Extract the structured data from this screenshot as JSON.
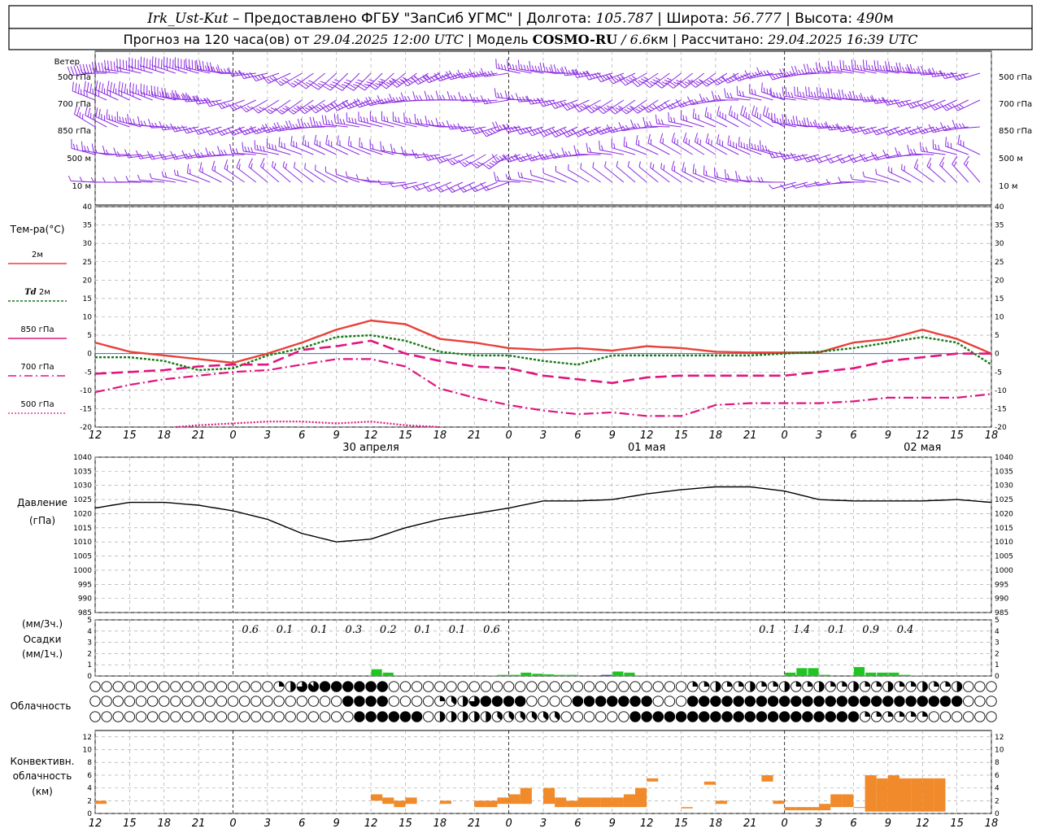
{
  "header": {
    "line1": {
      "station": "Irk_Ust-Kut",
      "provider": " – Предоставлено ФГБУ \"ЗапСиб УГМС\" | Долгота: ",
      "lon": "105.787",
      "lat_label": " | Широта: ",
      "lat": "56.777",
      "alt_label": " | Высота: ",
      "alt": "490",
      "alt_unit": "м"
    },
    "line2": {
      "prefix": "Прогноз на 120 часа(ов) от ",
      "start": "29.04.2025 12:00 UTC",
      "model_label": " | Модель ",
      "model": "COSMO-RU",
      "sep": " / ",
      "res": "6.6",
      "res_unit": "км",
      "calc_label": " | Рассчитано: ",
      "calc": "29.04.2025 16:39 UTC"
    }
  },
  "colors": {
    "wind": "#8b2be2",
    "t2m": "#e8413a",
    "td2m": "#157a15",
    "t850": "#e0157f",
    "t700": "#e0157f",
    "t500": "#e0157f",
    "pressure": "#000000",
    "precip_rain": "#21c521",
    "precip_other": "#2a52be",
    "convective": "#f08a2a",
    "grid": "#9a9a9a"
  },
  "panels": {
    "wind": {
      "title": "Ветер",
      "levels": [
        "500 гПа",
        "700 гПа",
        "850 гПа",
        "500 м",
        "10  м"
      ]
    },
    "temperature": {
      "title": "Тем-ра(°C)",
      "legend": [
        "2м",
        "Td 2м",
        "850 гПа",
        "700 гПа",
        "500 гПа"
      ],
      "legend_td_italic": "Td",
      "legend_td_rest": " 2м",
      "yticks": [
        "40",
        "35",
        "30",
        "25",
        "20",
        "15",
        "10",
        "5",
        "0",
        "-5",
        "-10",
        "-15",
        "-20"
      ]
    },
    "pressure": {
      "title1": "Давление",
      "title2": "(гПа)",
      "yticks": [
        "1040",
        "1035",
        "1030",
        "1025",
        "1020",
        "1015",
        "1010",
        "1005",
        "1000",
        "995",
        "990",
        "985"
      ]
    },
    "precip": {
      "title1": "(мм/3ч.)",
      "title2": "Осадки",
      "title3": "(мм/1ч.)",
      "yticks": [
        "5",
        "4",
        "3",
        "2",
        "1",
        "0"
      ],
      "labels": [
        {
          "hour": 13.5,
          "text": "0.6"
        },
        {
          "hour": 16.5,
          "text": "0.1"
        },
        {
          "hour": 19.5,
          "text": "0.1"
        },
        {
          "hour": 22.5,
          "text": "0.3"
        },
        {
          "hour": 25.5,
          "text": "0.2"
        },
        {
          "hour": 28.5,
          "text": "0.1"
        },
        {
          "hour": 31.5,
          "text": "0.1"
        },
        {
          "hour": 34.5,
          "text": "0.6"
        },
        {
          "hour": 58.5,
          "text": "0.1"
        },
        {
          "hour": 61.5,
          "text": "1.4"
        },
        {
          "hour": 64.5,
          "text": "0.1"
        },
        {
          "hour": 67.5,
          "text": "0.9"
        },
        {
          "hour": 70.5,
          "text": "0.4"
        }
      ]
    },
    "clouds": {
      "title": "Облачность"
    },
    "convective": {
      "title1": "Конвективн.",
      "title2": "облачность",
      "title3": "(км)",
      "yticks": [
        "12",
        "10",
        "8",
        "6",
        "4",
        "2",
        "0"
      ]
    }
  },
  "xaxis": {
    "ticks": [
      "12",
      "15",
      "18",
      "21",
      "0",
      "3",
      "6",
      "9",
      "12",
      "15",
      "18",
      "21",
      "0",
      "3",
      "6",
      "9",
      "12",
      "15",
      "18",
      "21",
      "0",
      "3",
      "6",
      "9",
      "12",
      "15",
      "18"
    ],
    "days": [
      {
        "hour": 24,
        "text": "30 апреля"
      },
      {
        "hour": 48,
        "text": "01 мая"
      },
      {
        "hour": 72,
        "text": "02 мая"
      }
    ]
  },
  "chart_data": [
    {
      "type": "line",
      "title": "Тем-ра(°C)",
      "x_unit": "hours since 29.04.2025 12:00 UTC",
      "ylim": [
        -20,
        40
      ],
      "series": [
        {
          "name": "2м",
          "x": [
            0,
            3,
            6,
            9,
            12,
            15,
            18,
            21,
            24,
            27,
            30,
            33,
            36,
            39,
            42,
            45,
            48,
            51,
            54,
            57,
            60,
            63,
            66,
            69,
            72,
            75,
            78
          ],
          "values": [
            3,
            0.5,
            -0.5,
            -1.5,
            -2.5,
            0,
            3,
            6.5,
            9,
            8,
            4,
            3,
            1.5,
            1,
            1.5,
            0.8,
            2,
            1.5,
            0.5,
            0.3,
            0.3,
            0.3,
            3,
            4,
            6.5,
            4,
            0
          ]
        },
        {
          "name": "Td 2м",
          "x": [
            0,
            3,
            6,
            9,
            12,
            15,
            18,
            21,
            24,
            27,
            30,
            33,
            36,
            39,
            42,
            45,
            48,
            51,
            54,
            57,
            60,
            63,
            66,
            69,
            72,
            75,
            78
          ],
          "values": [
            -1,
            -1,
            -2,
            -4.5,
            -4,
            -0.5,
            1.5,
            4.5,
            5,
            3.5,
            0.5,
            -0.5,
            -0.5,
            -2,
            -3,
            -0.5,
            -0.5,
            -0.5,
            -0.5,
            -0.5,
            0,
            0.5,
            1.5,
            3,
            4.5,
            3,
            -3
          ]
        },
        {
          "name": "850 гПа",
          "x": [
            0,
            3,
            6,
            9,
            12,
            15,
            18,
            21,
            24,
            27,
            30,
            33,
            36,
            39,
            42,
            45,
            48,
            51,
            54,
            57,
            60,
            63,
            66,
            69,
            72,
            75,
            78
          ],
          "values": [
            -5.5,
            -5,
            -4.5,
            -3.5,
            -3,
            -3,
            1,
            2,
            3.5,
            0,
            -2,
            -3.5,
            -4,
            -6,
            -7,
            -8,
            -6.5,
            -6,
            -6,
            -6,
            -6,
            -5,
            -4,
            -2,
            -1,
            0,
            0
          ]
        },
        {
          "name": "700 гПа",
          "x": [
            0,
            3,
            6,
            9,
            12,
            15,
            18,
            21,
            24,
            27,
            30,
            33,
            36,
            39,
            42,
            45,
            48,
            51,
            54,
            57,
            60,
            63,
            66,
            69,
            72,
            75,
            78
          ],
          "values": [
            -10.5,
            -8.5,
            -7,
            -6,
            -5,
            -4.5,
            -3,
            -1.5,
            -1.5,
            -3.5,
            -9.5,
            -12,
            -14,
            -15.5,
            -16.5,
            -16,
            -17,
            -17,
            -14,
            -13.5,
            -13.5,
            -13.5,
            -13,
            -12,
            -12,
            -12,
            -11
          ]
        },
        {
          "name": "500 гПа",
          "x": [
            7,
            9,
            12,
            15,
            18,
            21,
            24,
            27,
            30
          ],
          "values": [
            -20,
            -19.5,
            -19,
            -18.5,
            -18.5,
            -19,
            -18.5,
            -19.5,
            -20
          ]
        }
      ]
    },
    {
      "type": "line",
      "title": "Давление (гПа)",
      "x_unit": "hours since 29.04.2025 12:00 UTC",
      "ylim": [
        985,
        1040
      ],
      "series": [
        {
          "name": "Давление",
          "x": [
            0,
            3,
            6,
            9,
            12,
            15,
            18,
            21,
            24,
            27,
            30,
            33,
            36,
            39,
            42,
            45,
            48,
            51,
            54,
            57,
            60,
            63,
            66,
            69,
            72,
            75,
            78
          ],
          "values": [
            1022,
            1024,
            1024,
            1023,
            1021,
            1018,
            1013,
            1010,
            1011,
            1015,
            1018,
            1020,
            1022,
            1024.5,
            1024.5,
            1025,
            1027,
            1028.5,
            1029.5,
            1029.5,
            1028,
            1025,
            1024.5,
            1024.5,
            1024.5,
            1025,
            1024
          ]
        }
      ]
    },
    {
      "type": "bar",
      "title": "Осадки",
      "x_unit": "hours since 29.04.2025 12:00 UTC",
      "ylim": [
        0,
        5
      ],
      "series": [
        {
          "name": "мм/1ч.",
          "x": [
            24,
            25,
            26,
            27,
            29,
            30,
            34,
            35,
            36,
            37,
            38,
            39,
            40,
            41,
            44,
            45,
            46,
            47,
            58,
            59,
            60,
            61,
            62,
            63,
            66,
            67,
            68,
            69,
            70,
            71
          ],
          "values": [
            0.6,
            0.3,
            0.05,
            0.05,
            0.05,
            0.05,
            0.05,
            0.1,
            0.1,
            0.3,
            0.2,
            0.15,
            0.1,
            0.1,
            0.1,
            0.4,
            0.3,
            0.05,
            0.05,
            0.05,
            0.3,
            0.7,
            0.7,
            0.1,
            0.8,
            0.3,
            0.3,
            0.3,
            0.1,
            0.05
          ]
        }
      ]
    },
    {
      "type": "bar",
      "title": "Конвективн. облачность (км)",
      "x_unit": "hours since 29.04.2025 12:00 UTC",
      "ylim": [
        0,
        13
      ],
      "series": [
        {
          "name": "bottom",
          "x": [
            0,
            24,
            25,
            26,
            27,
            30,
            33,
            34,
            35,
            36,
            37,
            39,
            40,
            41,
            42,
            43,
            44,
            45,
            46,
            47,
            48,
            51,
            53,
            54,
            58,
            59,
            60,
            61,
            62,
            63,
            64,
            65,
            66,
            67,
            68,
            69,
            70,
            71,
            72,
            73
          ],
          "values": [
            1.5,
            2,
            1.5,
            1,
            1.5,
            1.5,
            1,
            1,
            1.5,
            1.5,
            1.5,
            1.5,
            1,
            1,
            1,
            1,
            1,
            1,
            1,
            1,
            5,
            0.8,
            4.5,
            1.5,
            5,
            1.5,
            0.5,
            0.5,
            0.5,
            0.5,
            1,
            1,
            1,
            0.3,
            0.3,
            0.3,
            0.3,
            0.3,
            0.3,
            0.3
          ]
        },
        {
          "name": "top",
          "x": [
            0,
            24,
            25,
            26,
            27,
            30,
            33,
            34,
            35,
            36,
            37,
            39,
            40,
            41,
            42,
            43,
            44,
            45,
            46,
            47,
            48,
            51,
            53,
            54,
            58,
            59,
            60,
            61,
            62,
            63,
            64,
            65,
            66,
            67,
            68,
            69,
            70,
            71,
            72,
            73
          ],
          "values": [
            2,
            3,
            2.5,
            2,
            2.5,
            2,
            2,
            2,
            2.5,
            3,
            4,
            4,
            2.5,
            2,
            2.5,
            2.5,
            2.5,
            2.5,
            3,
            4,
            5.5,
            1,
            5,
            2,
            6,
            2,
            1,
            1,
            1,
            1.5,
            3,
            3,
            1,
            6,
            5.5,
            6,
            5.5,
            5.5,
            5.5,
            5.5
          ]
        }
      ]
    }
  ]
}
